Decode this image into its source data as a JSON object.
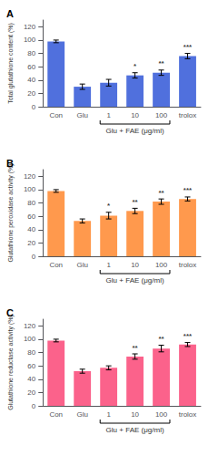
{
  "chart_data": [
    {
      "type": "bar",
      "title": "A",
      "ylabel": "Total glutathione content (%)",
      "xlabel": "Glu + FAE (μg/ml)",
      "categories": [
        "Con",
        "Glu",
        "1",
        "10",
        "100",
        "trolox"
      ],
      "values": [
        98,
        30,
        36,
        47,
        51,
        76
      ],
      "errors": [
        2,
        4,
        5,
        4,
        4,
        4
      ],
      "annotations": [
        null,
        null,
        null,
        "*",
        "**",
        "***"
      ],
      "ylim": [
        0,
        130
      ],
      "yticks": [
        0,
        20,
        40,
        60,
        80,
        100,
        120
      ],
      "grid": false
    },
    {
      "type": "bar",
      "title": "B",
      "ylabel": "Glutathione peroxidase activity (%)",
      "xlabel": "Glu + FAE (μg/ml)",
      "categories": [
        "Con",
        "Glu",
        "1",
        "10",
        "100",
        "trolox"
      ],
      "values": [
        98,
        53,
        61,
        68,
        82,
        86
      ],
      "errors": [
        2,
        3,
        5,
        4,
        4,
        3
      ],
      "annotations": [
        null,
        null,
        "*",
        "**",
        "**",
        "***"
      ],
      "ylim": [
        0,
        130
      ],
      "yticks": [
        0,
        20,
        40,
        60,
        80,
        100,
        120
      ],
      "grid": false
    },
    {
      "type": "bar",
      "title": "C",
      "ylabel": "Glutathione reductase activity (%)",
      "xlabel": "Glu + FAE (μg/ml)",
      "categories": [
        "Con",
        "Glu",
        "1",
        "10",
        "100",
        "trolox"
      ],
      "values": [
        98,
        52,
        57,
        74,
        86,
        92
      ],
      "errors": [
        2,
        3,
        3,
        4,
        5,
        3
      ],
      "annotations": [
        null,
        null,
        null,
        "**",
        "**",
        "***"
      ],
      "ylim": [
        0,
        130
      ],
      "yticks": [
        0,
        20,
        40,
        60,
        80,
        100,
        120
      ],
      "grid": false
    }
  ]
}
